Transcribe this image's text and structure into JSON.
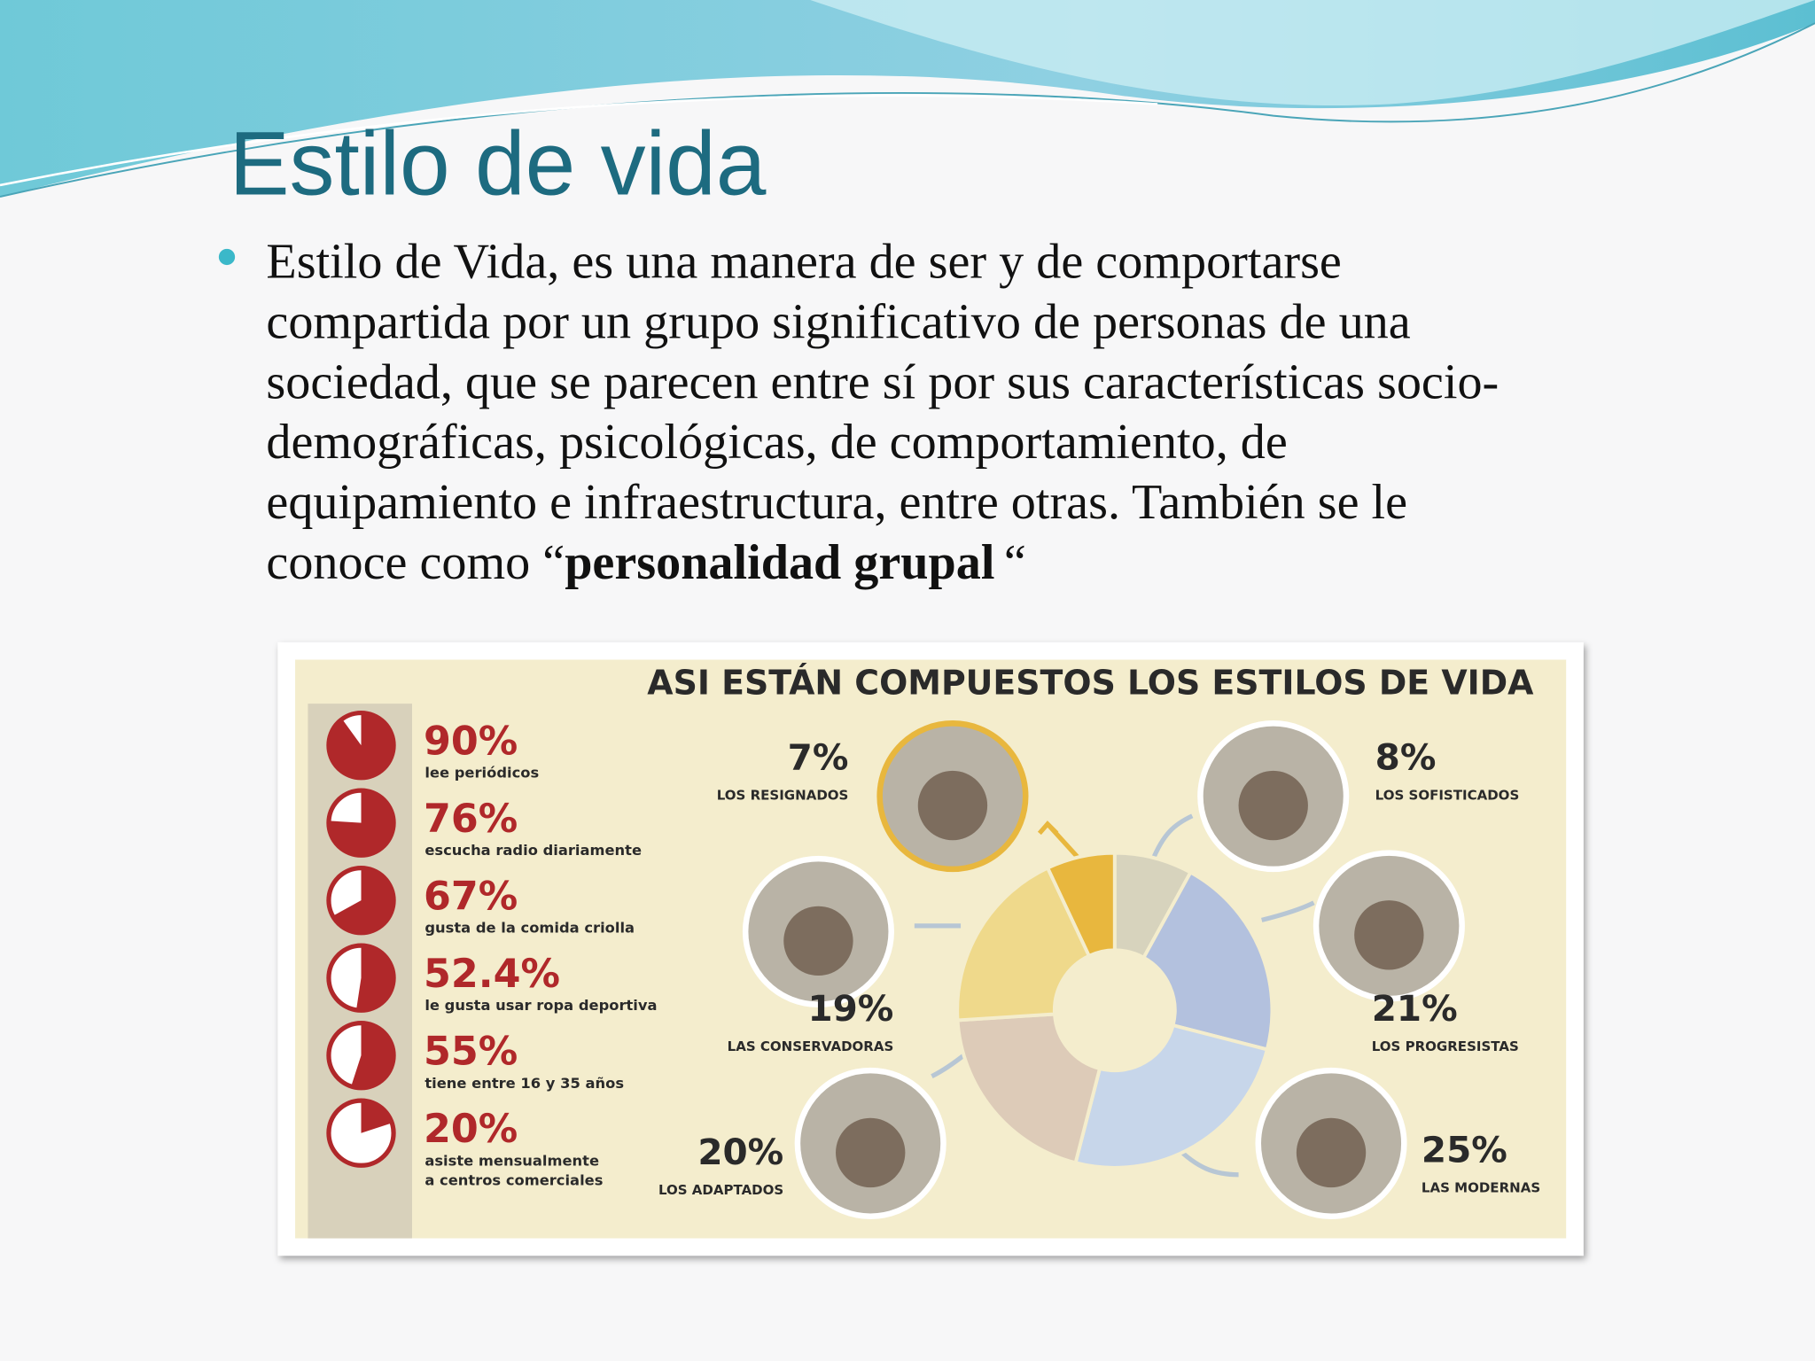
{
  "title": "Estilo de vida",
  "bullet": {
    "lines": [
      "Estilo de Vida, es una manera de ser y de comportarse",
      "compartida por un grupo significativo de personas de una",
      "sociedad, que se parecen entre sí por sus características socio-",
      "demográficas, psicológicas, de comportamiento, de",
      "equipamiento e infraestructura, entre otras. También se le"
    ],
    "last_line_start": "conoce como “",
    "emphasis": "personalidad grupal",
    "closing": "“"
  },
  "chart_data": [
    {
      "type": "donut",
      "title": "ASI ESTÁN COMPUESTOS LOS ESTILOS DE VIDA",
      "categories": [
        "LOS SOFISTICADOS",
        "LOS PROGRESISTAS",
        "LAS MODERNAS",
        "LOS ADAPTADOS",
        "LAS CONSERVADORAS",
        "LOS RESIGNADOS"
      ],
      "values": [
        8,
        21,
        25,
        20,
        19,
        7
      ],
      "value_labels": [
        "8%",
        "21%",
        "25%",
        "20%",
        "19%",
        "7%"
      ],
      "colors": [
        "#d7d3bd",
        "#b3c1de",
        "#c7d6ea",
        "#ddcbb8",
        "#efd98b",
        "#e8b73e"
      ]
    },
    {
      "type": "pie-icons",
      "categories": [
        "lee periódicos",
        "escucha radio diariamente",
        "gusta de la comida criolla",
        "le gusta usar ropa deportiva",
        "tiene entre 16 y 35 años",
        "asiste mensualmente\na centros comerciales"
      ],
      "values": [
        90,
        76,
        67,
        52.4,
        55,
        20
      ],
      "value_labels": [
        "90%",
        "76%",
        "67%",
        "52.4%",
        "55%",
        "20%"
      ],
      "color": "#b0282a"
    }
  ]
}
